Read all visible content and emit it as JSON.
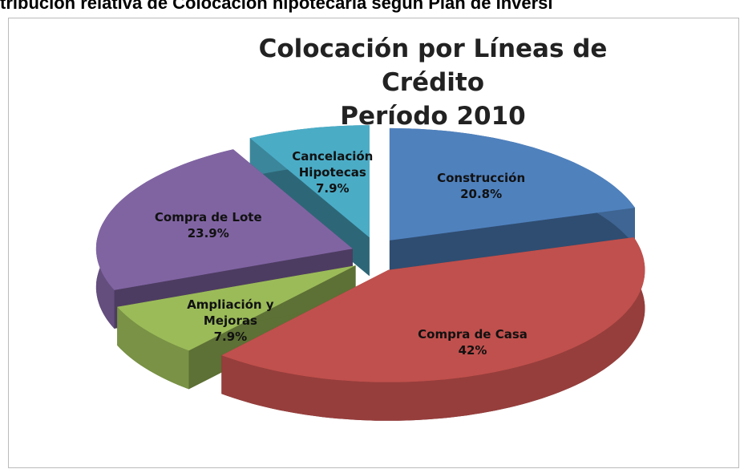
{
  "header": "tribución relativa de Colocación hipotecaria según Plan de Inversi",
  "chart_data": {
    "type": "pie",
    "title": "Colocación por Líneas de Crédito",
    "subtitle": "Período 2010",
    "categories": [
      "Construcción",
      "Compra de Casa",
      "Ampliación y Mejoras",
      "Compra de Lote",
      "Cancelación Hipotecas"
    ],
    "values": [
      20.8,
      42,
      7.9,
      23.9,
      7.9
    ],
    "value_labels": [
      "20.8%",
      "42%",
      "7.9%",
      "23.9%",
      "7.9%"
    ],
    "colors": [
      "#4f81bd",
      "#c0504d",
      "#9bbb59",
      "#8064a2",
      "#4bacc6"
    ]
  }
}
